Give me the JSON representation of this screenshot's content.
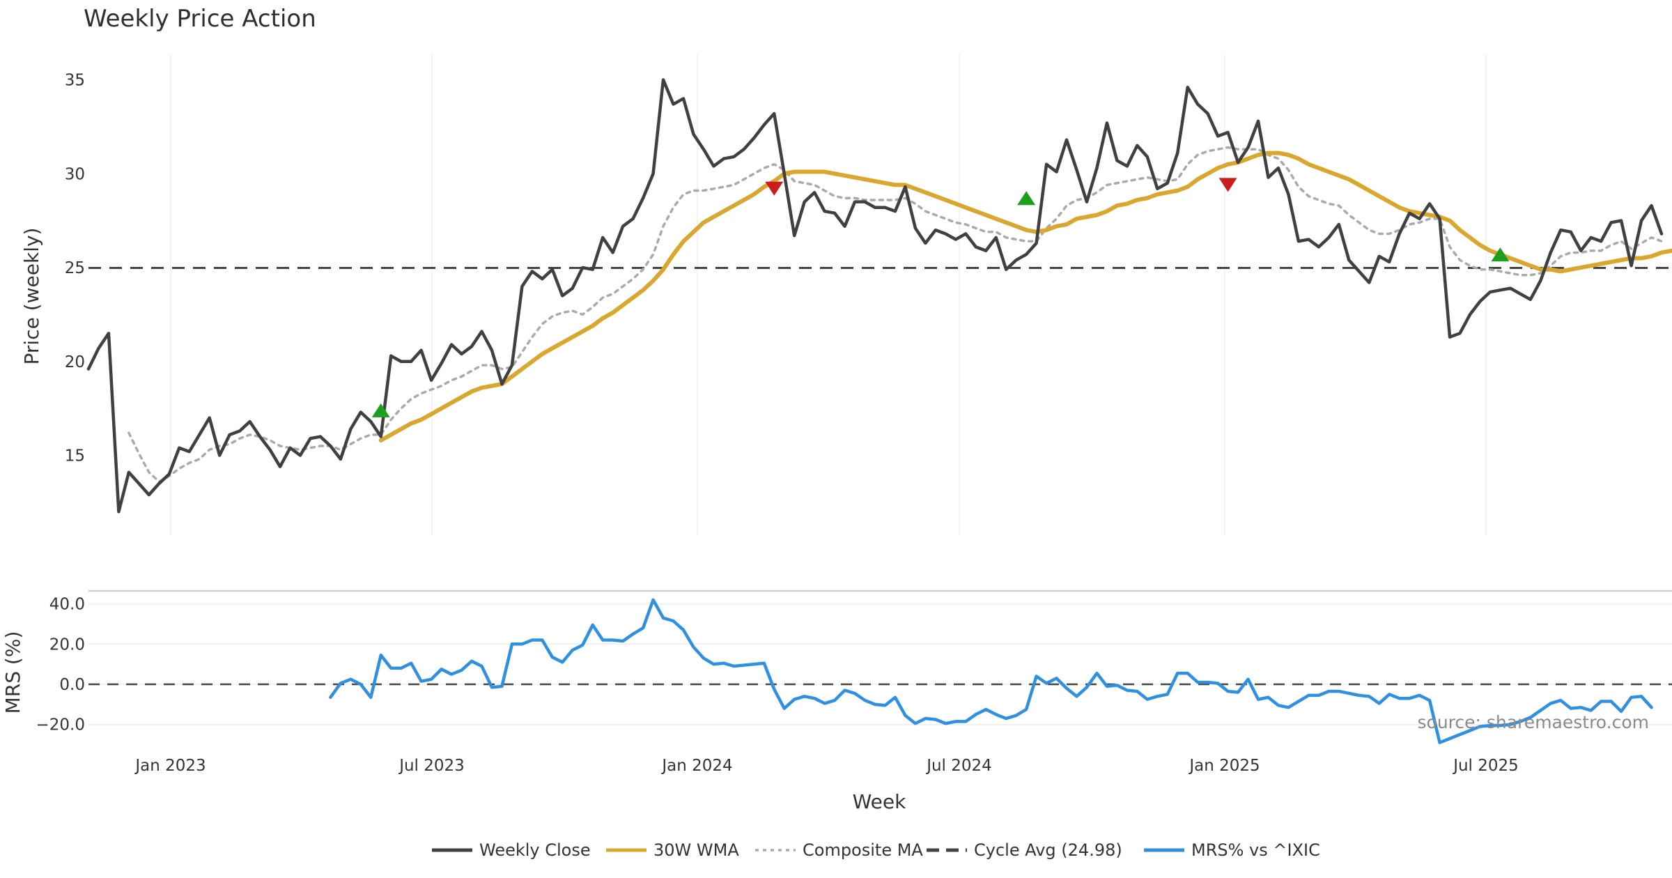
{
  "chart_data": {
    "type": "line",
    "title": "Weekly Price Action",
    "xlabel": "Week",
    "source": "source: sharemaestro.com",
    "x_ticks": [
      "Jan 2023",
      "Jul 2023",
      "Jan 2024",
      "Jul 2024",
      "Jan 2025",
      "Jul 2025"
    ],
    "x_range": [
      "2022-10-31",
      "2025-11-24"
    ],
    "price_panel": {
      "ylabel": "Price (weekly)",
      "ylim": [
        10.9,
        36.5
      ],
      "yticks": [
        15,
        20,
        25,
        30,
        35
      ],
      "cycle_avg": 24.98,
      "series": [
        {
          "name": "Weekly Close",
          "color": "#404040",
          "values": [
            19.6,
            20.7,
            21.5,
            12.0,
            14.1,
            13.5,
            12.9,
            13.5,
            14.0,
            15.4,
            15.2,
            16.1,
            17.0,
            15.0,
            16.1,
            16.3,
            16.8,
            16.0,
            15.3,
            14.4,
            15.4,
            15.0,
            15.9,
            16.0,
            15.5,
            14.8,
            16.4,
            17.3,
            16.8,
            16.0,
            20.3,
            20.0,
            20.0,
            20.6,
            19.0,
            19.9,
            20.9,
            20.4,
            20.8,
            21.6,
            20.6,
            18.8,
            19.8,
            24.0,
            24.8,
            24.4,
            24.9,
            23.5,
            23.9,
            25.0,
            24.9,
            26.6,
            25.8,
            27.2,
            27.6,
            28.7,
            30.0,
            35.0,
            33.7,
            34.0,
            32.1,
            31.3,
            30.4,
            30.8,
            30.9,
            31.3,
            31.9,
            32.6,
            33.2,
            30.0,
            26.7,
            28.5,
            29.0,
            28.0,
            27.9,
            27.2,
            28.5,
            28.5,
            28.2,
            28.2,
            28.0,
            29.3,
            27.1,
            26.3,
            27.0,
            26.8,
            26.5,
            26.8,
            26.1,
            25.9,
            26.6,
            24.9,
            25.4,
            25.7,
            26.3,
            30.5,
            30.1,
            31.8,
            30.2,
            28.5,
            30.3,
            32.7,
            30.7,
            30.4,
            31.5,
            30.9,
            29.2,
            29.5,
            31.1,
            34.6,
            33.7,
            33.2,
            32.0,
            32.2,
            30.6,
            31.4,
            32.8,
            29.8,
            30.3,
            28.9,
            26.4,
            26.5,
            26.1,
            26.6,
            27.3,
            25.4,
            24.8,
            24.2,
            25.6,
            25.3,
            26.8,
            27.9,
            27.6,
            28.4,
            27.6,
            21.3,
            21.5,
            22.5,
            23.2,
            23.7,
            23.8,
            23.9,
            23.6,
            23.3,
            24.3,
            25.8,
            27.0,
            26.9,
            25.9,
            26.6,
            26.4,
            27.4,
            27.5,
            25.1,
            27.5,
            28.3,
            26.8
          ]
        },
        {
          "name": "30W WMA",
          "color": "#d9a62e",
          "values": [
            null,
            null,
            null,
            null,
            null,
            null,
            null,
            null,
            null,
            null,
            null,
            null,
            null,
            null,
            null,
            null,
            null,
            null,
            null,
            null,
            null,
            null,
            null,
            null,
            null,
            null,
            null,
            null,
            null,
            15.8,
            16.1,
            16.4,
            16.7,
            16.9,
            17.2,
            17.5,
            17.8,
            18.1,
            18.4,
            18.6,
            18.7,
            18.8,
            19.2,
            19.6,
            20.0,
            20.4,
            20.7,
            21.0,
            21.3,
            21.6,
            21.9,
            22.3,
            22.6,
            23.0,
            23.4,
            23.8,
            24.3,
            24.9,
            25.7,
            26.4,
            26.9,
            27.4,
            27.7,
            28.0,
            28.3,
            28.6,
            28.9,
            29.3,
            29.6,
            30.0,
            30.1,
            30.1,
            30.1,
            30.1,
            30.0,
            29.9,
            29.8,
            29.7,
            29.6,
            29.5,
            29.4,
            29.4,
            29.2,
            29.0,
            28.8,
            28.6,
            28.4,
            28.2,
            28.0,
            27.8,
            27.6,
            27.4,
            27.2,
            27.0,
            26.9,
            27.0,
            27.2,
            27.3,
            27.6,
            27.7,
            27.8,
            28.0,
            28.3,
            28.4,
            28.6,
            28.7,
            28.9,
            29.0,
            29.1,
            29.3,
            29.7,
            30.0,
            30.3,
            30.5,
            30.6,
            30.8,
            31.0,
            31.1,
            31.1,
            31.0,
            30.8,
            30.5,
            30.3,
            30.1,
            29.9,
            29.7,
            29.4,
            29.1,
            28.8,
            28.5,
            28.2,
            28.0,
            27.9,
            27.8,
            27.7,
            27.5,
            27.0,
            26.6,
            26.2,
            25.9,
            25.7,
            25.5,
            25.3,
            25.1,
            24.9,
            24.9,
            24.8,
            24.9,
            25.0,
            25.1,
            25.2,
            25.3,
            25.4,
            25.5,
            25.5,
            25.6,
            25.8,
            25.9
          ]
        },
        {
          "name": "Composite MA",
          "color": "#aaaaaa",
          "values": [
            null,
            null,
            null,
            null,
            16.2,
            15.1,
            14.1,
            13.6,
            13.9,
            14.3,
            14.6,
            14.8,
            15.3,
            15.5,
            15.6,
            15.9,
            16.1,
            16.0,
            15.8,
            15.5,
            15.4,
            15.3,
            15.4,
            15.5,
            15.5,
            15.3,
            15.6,
            15.9,
            16.1,
            16.1,
            16.9,
            17.5,
            18.0,
            18.3,
            18.5,
            18.7,
            19.0,
            19.2,
            19.5,
            19.8,
            19.8,
            19.6,
            19.7,
            20.5,
            21.3,
            22.0,
            22.4,
            22.6,
            22.7,
            22.5,
            22.9,
            23.4,
            23.6,
            24.0,
            24.4,
            24.9,
            25.7,
            27.2,
            28.2,
            28.9,
            29.1,
            29.1,
            29.2,
            29.3,
            29.4,
            29.7,
            30.0,
            30.3,
            30.5,
            30.2,
            29.6,
            29.5,
            29.4,
            29.1,
            28.8,
            28.7,
            28.7,
            28.6,
            28.6,
            28.6,
            28.6,
            28.7,
            28.4,
            28.0,
            27.8,
            27.6,
            27.4,
            27.3,
            27.1,
            26.9,
            26.9,
            26.6,
            26.5,
            26.4,
            26.4,
            27.1,
            27.6,
            28.3,
            28.6,
            28.7,
            29.0,
            29.4,
            29.5,
            29.6,
            29.7,
            29.8,
            29.7,
            29.6,
            29.7,
            30.5,
            31.0,
            31.2,
            31.3,
            31.4,
            31.3,
            31.3,
            31.3,
            31.0,
            30.8,
            30.2,
            29.3,
            28.8,
            28.6,
            28.4,
            28.3,
            27.8,
            27.4,
            27.0,
            26.8,
            26.8,
            27.0,
            27.3,
            27.4,
            27.6,
            27.6,
            26.1,
            25.4,
            25.1,
            24.9,
            24.9,
            24.8,
            24.7,
            24.6,
            24.6,
            24.7,
            25.1,
            25.6,
            25.8,
            25.8,
            25.9,
            25.9,
            26.2,
            26.4,
            26.0,
            26.3,
            26.6,
            26.4
          ]
        }
      ],
      "markers": [
        {
          "type": "buy",
          "week_index": 29,
          "price": 17.4,
          "color": "#1e9e1e"
        },
        {
          "type": "sell",
          "week_index": 68,
          "price": 29.2,
          "color": "#cc1d1d"
        },
        {
          "type": "buy",
          "week_index": 93,
          "price": 28.7,
          "color": "#1e9e1e"
        },
        {
          "type": "sell",
          "week_index": 113,
          "price": 29.4,
          "color": "#cc1d1d"
        },
        {
          "type": "buy",
          "week_index": 140,
          "price": 25.7,
          "color": "#1e9e1e"
        }
      ]
    },
    "mrs_panel": {
      "ylabel": "MRS (%)",
      "ylim": [
        -27,
        48
      ],
      "yticks": [
        40.0,
        20.0,
        0.0,
        -20.0
      ],
      "ytick_labels": [
        "40.0",
        "20.0",
        "0.0",
        "−20.0"
      ],
      "zero_line": 0,
      "series": {
        "name": "MRS% vs ^IXIC",
        "color": "#2f8fe0",
        "values": [
          null,
          null,
          null,
          null,
          null,
          null,
          null,
          null,
          null,
          null,
          null,
          null,
          null,
          null,
          null,
          null,
          null,
          null,
          null,
          null,
          null,
          null,
          null,
          null,
          -6.5,
          0.5,
          2.5,
          0.0,
          -6.5,
          14.5,
          8.0,
          8.0,
          10.5,
          1.5,
          2.5,
          7.5,
          5.0,
          7.0,
          11.5,
          9.0,
          -1.5,
          -1.0,
          20.0,
          20.0,
          22.0,
          22.0,
          13.5,
          11.0,
          17.0,
          19.5,
          29.5,
          22.0,
          22.0,
          21.5,
          25.0,
          28.0,
          42.0,
          33.0,
          31.5,
          27.0,
          18.5,
          13.0,
          10.0,
          10.5,
          9.0,
          9.5,
          10.0,
          10.5,
          -2.5,
          -12.0,
          -7.5,
          -6.0,
          -7.0,
          -9.5,
          -8.0,
          -3.0,
          -4.5,
          -8.0,
          -10.0,
          -10.5,
          -6.5,
          -15.5,
          -19.5,
          -17.0,
          -17.5,
          -19.5,
          -18.5,
          -18.5,
          -15.0,
          -12.5,
          -15.0,
          -17.0,
          -15.5,
          -12.5,
          4.0,
          0.5,
          3.0,
          -2.0,
          -6.0,
          -1.5,
          5.5,
          -1.0,
          -0.5,
          -3.0,
          -3.5,
          -7.5,
          -6.0,
          -5.0,
          5.5,
          5.5,
          1.0,
          1.0,
          0.5,
          -3.5,
          -4.0,
          2.5,
          -7.5,
          -6.5,
          -10.5,
          -11.5,
          -8.5,
          -5.5,
          -5.5,
          -3.5,
          -3.5,
          -4.5,
          -5.5,
          -6.0,
          -9.5,
          -5.0,
          -7.0,
          -7.0,
          -5.5,
          -8.0,
          -29.0,
          -27.0,
          -25.0,
          -23.0,
          -21.0,
          -20.5,
          -20.5,
          -20.0,
          -18.5,
          -16.5,
          -13.0,
          -9.5,
          -8.0,
          -12.0,
          -11.5,
          -13.0,
          -8.5,
          -8.5,
          -13.5,
          -6.5,
          -6.0,
          -11.5
        ]
      }
    },
    "legend": {
      "position": "bottom-center",
      "entries": [
        {
          "label": "Weekly Close",
          "color": "#404040",
          "style": "solid"
        },
        {
          "label": "30W WMA",
          "color": "#d9a62e",
          "style": "solid"
        },
        {
          "label": "Composite MA",
          "color": "#aaaaaa",
          "style": "dotted"
        },
        {
          "label": "Cycle Avg (24.98)",
          "color": "#444444",
          "style": "dashed"
        },
        {
          "label": "MRS% vs ^IXIC",
          "color": "#2f8fe0",
          "style": "solid"
        }
      ]
    }
  }
}
